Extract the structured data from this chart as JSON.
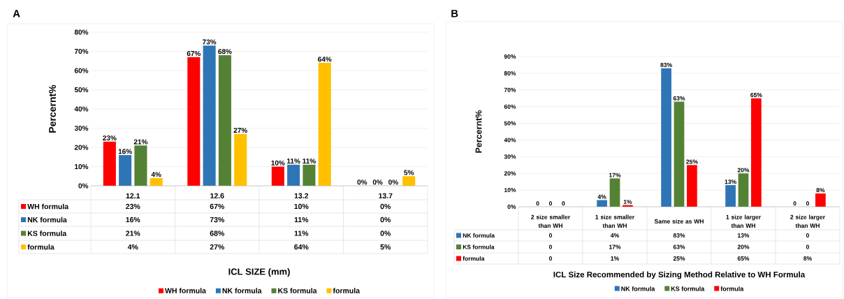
{
  "chart_data": [
    {
      "type": "bar",
      "title": "A",
      "xlabel": "ICL SIZE  (mm)",
      "ylabel": "Percernt%",
      "categories": [
        "12.1",
        "12.6",
        "13.2",
        "13.7"
      ],
      "series": [
        {
          "name": "WH formula",
          "color": "#ff0000",
          "values": [
            23,
            67,
            10,
            0
          ],
          "value_labels": [
            "23%",
            "67%",
            "10%",
            "0%"
          ]
        },
        {
          "name": "NK formula",
          "color": "#2e75b6",
          "values": [
            16,
            73,
            11,
            0
          ],
          "value_labels": [
            "16%",
            "73%",
            "11%",
            "0%"
          ]
        },
        {
          "name": "KS formula",
          "color": "#548235",
          "values": [
            21,
            68,
            11,
            0
          ],
          "value_labels": [
            "21%",
            "68%",
            "11%",
            "0%"
          ]
        },
        {
          "name": "formula",
          "color": "#ffc000",
          "values": [
            4,
            27,
            64,
            5
          ],
          "value_labels": [
            "4%",
            "27%",
            "64%",
            "5%"
          ]
        }
      ],
      "ylim": [
        0,
        80
      ],
      "yticks": [
        {
          "value": 0,
          "label": "0%"
        },
        {
          "value": 10,
          "label": "10%"
        },
        {
          "value": 20,
          "label": "20%"
        },
        {
          "value": 30,
          "label": "30%"
        },
        {
          "value": 40,
          "label": "40%"
        },
        {
          "value": 50,
          "label": "50%"
        },
        {
          "value": 60,
          "label": "60%"
        },
        {
          "value": 70,
          "label": "70%"
        },
        {
          "value": 80,
          "label": "80%"
        }
      ],
      "grid": "y",
      "legend": "bottom"
    },
    {
      "type": "bar",
      "title": "B",
      "xlabel": "ICL Size Recommended by Sizing Method Relative to WH Formula",
      "ylabel": "Percernt%",
      "categories": [
        "2 size smaller than WH",
        "1 size smaller than WH",
        "Same size as WH",
        "1 size larger than WH",
        "2 size larger than WH"
      ],
      "series": [
        {
          "name": "NK  formula",
          "color": "#2e75b6",
          "values": [
            0,
            4,
            83,
            13,
            0
          ],
          "value_labels": [
            "0",
            "4%",
            "83%",
            "13%",
            "0"
          ]
        },
        {
          "name": "KS  formula",
          "color": "#548235",
          "values": [
            0,
            17,
            63,
            20,
            0
          ],
          "value_labels": [
            "0",
            "17%",
            "63%",
            "20%",
            "0"
          ]
        },
        {
          "name": "formula",
          "color": "#ff0000",
          "values": [
            0,
            1,
            25,
            65,
            8
          ],
          "value_labels": [
            "0",
            "1%",
            "25%",
            "65%",
            "8%"
          ]
        }
      ],
      "ylim": [
        0,
        90
      ],
      "yticks": [
        {
          "value": 0,
          "label": "0%"
        },
        {
          "value": 10,
          "label": "10%"
        },
        {
          "value": 20,
          "label": "20%"
        },
        {
          "value": 30,
          "label": "30%"
        },
        {
          "value": 40,
          "label": "40%"
        },
        {
          "value": 50,
          "label": "50%"
        },
        {
          "value": 60,
          "label": "60%"
        },
        {
          "value": 70,
          "label": "70%"
        },
        {
          "value": 80,
          "label": "80%"
        },
        {
          "value": 90,
          "label": "90%"
        }
      ],
      "grid": "y",
      "legend": "bottom"
    }
  ]
}
